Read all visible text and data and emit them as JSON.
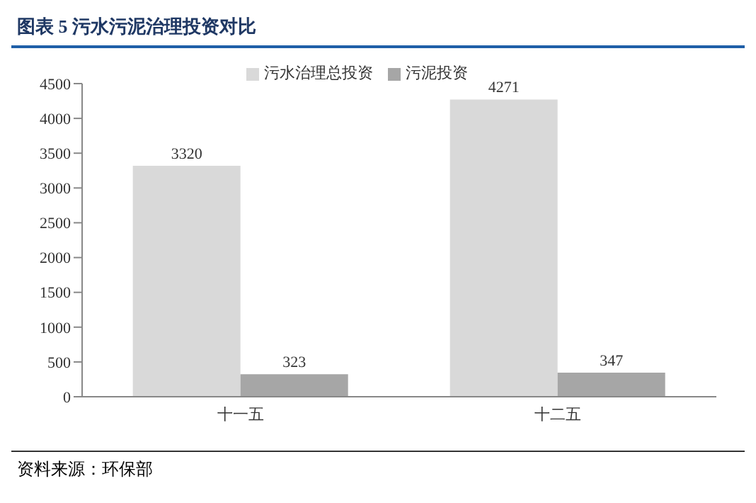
{
  "chart_data": {
    "type": "bar",
    "title": "图表 5  污水污泥治理投资对比",
    "categories": [
      "十一五",
      "十二五"
    ],
    "series": [
      {
        "name": "污水治理总投资",
        "color": "#d9d9d9",
        "values": [
          3320,
          4271
        ]
      },
      {
        "name": "污泥投资",
        "color": "#a6a6a6",
        "values": [
          323,
          347
        ]
      }
    ],
    "ylim": [
      0,
      4500
    ],
    "yticks": [
      0,
      500,
      1000,
      1500,
      2000,
      2500,
      3000,
      3500,
      4000,
      4500
    ],
    "grid": false,
    "legend": "top",
    "data_labels": true,
    "annotations": [
      "资料来源：环保部"
    ]
  }
}
